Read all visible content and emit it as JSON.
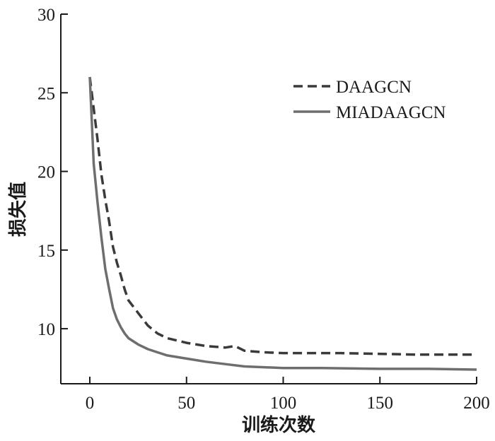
{
  "chart_data": {
    "type": "line",
    "xlabel": "训练次数",
    "ylabel": "损失值",
    "xlim": [
      -15,
      200
    ],
    "ylim": [
      6.5,
      30
    ],
    "xticks": [
      0,
      50,
      100,
      150,
      200
    ],
    "yticks": [
      10,
      15,
      20,
      25,
      30
    ],
    "grid": false,
    "legend_position": "top-right",
    "series": [
      {
        "name": "DAAGCN",
        "color": "#3a3a3a",
        "style": "dashed",
        "points": [
          [
            0,
            26.0
          ],
          [
            2,
            24.0
          ],
          [
            4,
            22.0
          ],
          [
            6,
            19.8
          ],
          [
            8,
            18.2
          ],
          [
            10,
            16.8
          ],
          [
            12,
            15.2
          ],
          [
            14,
            14.2
          ],
          [
            16,
            13.4
          ],
          [
            18,
            12.5
          ],
          [
            20,
            11.8
          ],
          [
            25,
            11.0
          ],
          [
            30,
            10.2
          ],
          [
            35,
            9.7
          ],
          [
            40,
            9.4
          ],
          [
            50,
            9.1
          ],
          [
            60,
            8.9
          ],
          [
            70,
            8.8
          ],
          [
            75,
            8.9
          ],
          [
            80,
            8.6
          ],
          [
            90,
            8.5
          ],
          [
            100,
            8.45
          ],
          [
            110,
            8.45
          ],
          [
            120,
            8.45
          ],
          [
            130,
            8.45
          ],
          [
            150,
            8.4
          ],
          [
            170,
            8.35
          ],
          [
            200,
            8.35
          ]
        ]
      },
      {
        "name": "MIADAAGCN",
        "color": "#6e6e6e",
        "style": "solid",
        "points": [
          [
            0,
            26.0
          ],
          [
            2,
            20.5
          ],
          [
            4,
            18.0
          ],
          [
            6,
            15.8
          ],
          [
            8,
            13.8
          ],
          [
            10,
            12.5
          ],
          [
            12,
            11.3
          ],
          [
            14,
            10.6
          ],
          [
            16,
            10.1
          ],
          [
            18,
            9.7
          ],
          [
            20,
            9.4
          ],
          [
            25,
            9.0
          ],
          [
            30,
            8.7
          ],
          [
            35,
            8.5
          ],
          [
            40,
            8.3
          ],
          [
            50,
            8.1
          ],
          [
            60,
            7.9
          ],
          [
            70,
            7.75
          ],
          [
            80,
            7.6
          ],
          [
            90,
            7.55
          ],
          [
            100,
            7.5
          ],
          [
            120,
            7.5
          ],
          [
            150,
            7.45
          ],
          [
            175,
            7.45
          ],
          [
            200,
            7.4
          ]
        ]
      }
    ]
  }
}
